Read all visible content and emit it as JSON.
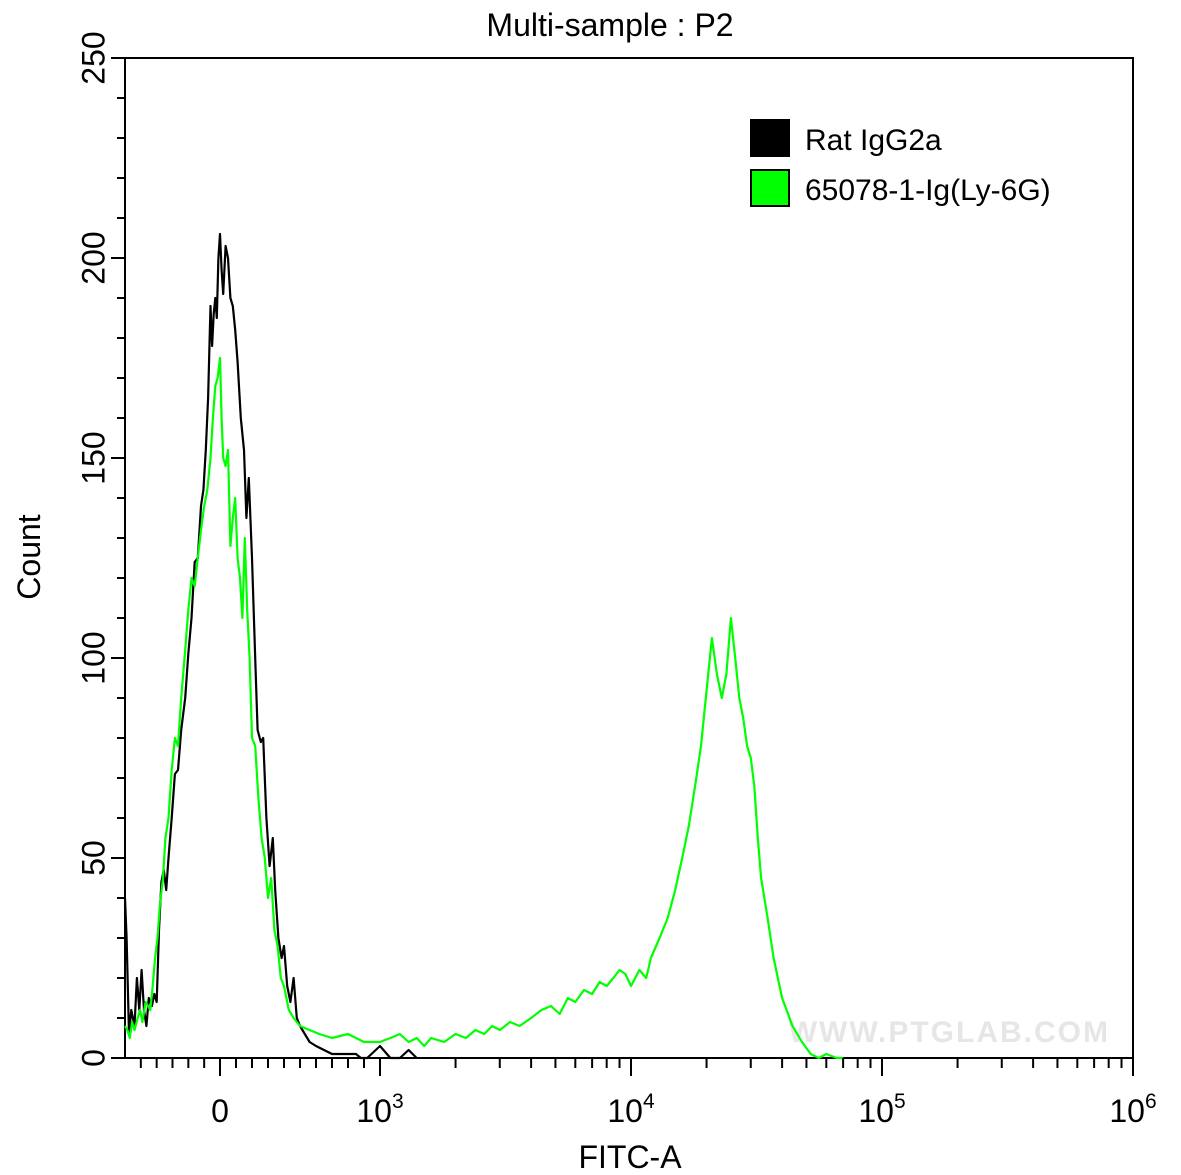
{
  "chart_data": {
    "type": "line",
    "title": "Multi-sample : P2",
    "xlabel": "FITC-A",
    "ylabel": "Count",
    "x_scale": "biexponential",
    "ylim": [
      0,
      250
    ],
    "y_ticks": [
      0,
      50,
      100,
      150,
      200,
      250
    ],
    "y_tick_labels": [
      "0",
      "50",
      "100",
      "150",
      "200",
      "250"
    ],
    "x_ticks": [
      {
        "value": 0,
        "base": "0",
        "exp": ""
      },
      {
        "value": 1000,
        "base": "10",
        "exp": "3"
      },
      {
        "value": 10000,
        "base": "10",
        "exp": "4"
      },
      {
        "value": 100000,
        "base": "10",
        "exp": "5"
      },
      {
        "value": 1000000,
        "base": "10",
        "exp": "6"
      }
    ],
    "legend_position": "top-right",
    "watermark": "WWW.PTGLAB.COM",
    "series": [
      {
        "name": "Rat IgG2a",
        "color": "#000000",
        "points": [
          [
            -600,
            40
          ],
          [
            -590,
            30
          ],
          [
            -575,
            6
          ],
          [
            -560,
            12
          ],
          [
            -540,
            8
          ],
          [
            -525,
            20
          ],
          [
            -510,
            12
          ],
          [
            -495,
            22
          ],
          [
            -480,
            12
          ],
          [
            -465,
            8
          ],
          [
            -450,
            15
          ],
          [
            -430,
            13
          ],
          [
            -415,
            16
          ],
          [
            -400,
            14
          ],
          [
            -385,
            32
          ],
          [
            -370,
            44
          ],
          [
            -355,
            47
          ],
          [
            -340,
            42
          ],
          [
            -325,
            50
          ],
          [
            -305,
            60
          ],
          [
            -285,
            71
          ],
          [
            -265,
            72
          ],
          [
            -245,
            82
          ],
          [
            -220,
            90
          ],
          [
            -200,
            101
          ],
          [
            -180,
            110
          ],
          [
            -160,
            124
          ],
          [
            -140,
            125
          ],
          [
            -120,
            138
          ],
          [
            -105,
            142
          ],
          [
            -90,
            152
          ],
          [
            -75,
            165
          ],
          [
            -60,
            188
          ],
          [
            -50,
            178
          ],
          [
            -40,
            186
          ],
          [
            -30,
            190
          ],
          [
            -20,
            185
          ],
          [
            -10,
            200
          ],
          [
            0,
            206
          ],
          [
            10,
            197
          ],
          [
            20,
            191
          ],
          [
            35,
            203
          ],
          [
            50,
            200
          ],
          [
            65,
            190
          ],
          [
            80,
            188
          ],
          [
            95,
            182
          ],
          [
            110,
            174
          ],
          [
            130,
            160
          ],
          [
            150,
            152
          ],
          [
            165,
            135
          ],
          [
            180,
            145
          ],
          [
            200,
            125
          ],
          [
            220,
            100
          ],
          [
            235,
            82
          ],
          [
            255,
            79
          ],
          [
            270,
            80
          ],
          [
            290,
            60
          ],
          [
            310,
            48
          ],
          [
            330,
            55
          ],
          [
            345,
            42
          ],
          [
            365,
            30
          ],
          [
            385,
            25
          ],
          [
            400,
            28
          ],
          [
            420,
            18
          ],
          [
            440,
            14
          ],
          [
            460,
            20
          ],
          [
            480,
            10
          ],
          [
            500,
            8
          ],
          [
            530,
            6
          ],
          [
            560,
            4
          ],
          [
            600,
            3
          ],
          [
            650,
            2
          ],
          [
            700,
            1
          ],
          [
            760,
            1
          ],
          [
            800,
            1
          ],
          [
            850,
            1
          ],
          [
            880,
            0
          ],
          [
            920,
            0
          ],
          [
            1000,
            3
          ],
          [
            1100,
            0
          ],
          [
            1200,
            0
          ],
          [
            1300,
            2
          ],
          [
            1400,
            0
          ]
        ]
      },
      {
        "name": "65078-1-Ig(Ly-6G)",
        "color": "#00ff00",
        "points": [
          [
            -600,
            8
          ],
          [
            -585,
            7
          ],
          [
            -570,
            5
          ],
          [
            -555,
            9
          ],
          [
            -540,
            7
          ],
          [
            -520,
            10
          ],
          [
            -505,
            12
          ],
          [
            -490,
            9
          ],
          [
            -470,
            14
          ],
          [
            -455,
            13
          ],
          [
            -440,
            12
          ],
          [
            -425,
            18
          ],
          [
            -410,
            25
          ],
          [
            -395,
            30
          ],
          [
            -380,
            38
          ],
          [
            -360,
            45
          ],
          [
            -345,
            55
          ],
          [
            -325,
            60
          ],
          [
            -305,
            72
          ],
          [
            -285,
            80
          ],
          [
            -265,
            78
          ],
          [
            -245,
            90
          ],
          [
            -220,
            102
          ],
          [
            -200,
            112
          ],
          [
            -180,
            120
          ],
          [
            -160,
            118
          ],
          [
            -140,
            125
          ],
          [
            -120,
            132
          ],
          [
            -100,
            138
          ],
          [
            -80,
            142
          ],
          [
            -60,
            150
          ],
          [
            -45,
            160
          ],
          [
            -30,
            168
          ],
          [
            -15,
            170
          ],
          [
            0,
            175
          ],
          [
            10,
            160
          ],
          [
            20,
            150
          ],
          [
            35,
            148
          ],
          [
            50,
            152
          ],
          [
            65,
            128
          ],
          [
            80,
            135
          ],
          [
            95,
            140
          ],
          [
            110,
            125
          ],
          [
            125,
            120
          ],
          [
            140,
            110
          ],
          [
            155,
            130
          ],
          [
            170,
            112
          ],
          [
            185,
            100
          ],
          [
            200,
            80
          ],
          [
            220,
            78
          ],
          [
            240,
            65
          ],
          [
            260,
            55
          ],
          [
            280,
            50
          ],
          [
            300,
            40
          ],
          [
            320,
            45
          ],
          [
            340,
            32
          ],
          [
            360,
            28
          ],
          [
            380,
            20
          ],
          [
            400,
            18
          ],
          [
            430,
            12
          ],
          [
            460,
            10
          ],
          [
            500,
            8
          ],
          [
            560,
            7
          ],
          [
            620,
            6
          ],
          [
            700,
            5
          ],
          [
            800,
            6
          ],
          [
            900,
            4
          ],
          [
            1000,
            4
          ],
          [
            1100,
            5
          ],
          [
            1200,
            6
          ],
          [
            1300,
            4
          ],
          [
            1400,
            5
          ],
          [
            1500,
            3
          ],
          [
            1600,
            5
          ],
          [
            1800,
            4
          ],
          [
            2000,
            6
          ],
          [
            2200,
            5
          ],
          [
            2400,
            7
          ],
          [
            2600,
            6
          ],
          [
            2800,
            8
          ],
          [
            3000,
            7
          ],
          [
            3300,
            9
          ],
          [
            3600,
            8
          ],
          [
            4000,
            10
          ],
          [
            4400,
            12
          ],
          [
            4800,
            13
          ],
          [
            5200,
            11
          ],
          [
            5600,
            15
          ],
          [
            6000,
            14
          ],
          [
            6500,
            17
          ],
          [
            7000,
            16
          ],
          [
            7500,
            19
          ],
          [
            8000,
            18
          ],
          [
            8500,
            20
          ],
          [
            9000,
            22
          ],
          [
            9500,
            21
          ],
          [
            10000,
            18
          ],
          [
            10800,
            22
          ],
          [
            11500,
            20
          ],
          [
            12000,
            25
          ],
          [
            13000,
            30
          ],
          [
            14000,
            35
          ],
          [
            15000,
            42
          ],
          [
            16000,
            50
          ],
          [
            17000,
            58
          ],
          [
            18000,
            68
          ],
          [
            19000,
            78
          ],
          [
            20000,
            92
          ],
          [
            21000,
            105
          ],
          [
            22000,
            96
          ],
          [
            23000,
            90
          ],
          [
            24000,
            96
          ],
          [
            25000,
            110
          ],
          [
            26000,
            100
          ],
          [
            27000,
            90
          ],
          [
            28000,
            85
          ],
          [
            29000,
            78
          ],
          [
            30000,
            75
          ],
          [
            31000,
            68
          ],
          [
            32000,
            55
          ],
          [
            33000,
            45
          ],
          [
            35000,
            35
          ],
          [
            37000,
            25
          ],
          [
            40000,
            15
          ],
          [
            44000,
            8
          ],
          [
            48000,
            4
          ],
          [
            52000,
            1
          ],
          [
            56000,
            0
          ],
          [
            60000,
            1
          ],
          [
            66000,
            0
          ],
          [
            70000,
            0
          ]
        ]
      }
    ]
  }
}
